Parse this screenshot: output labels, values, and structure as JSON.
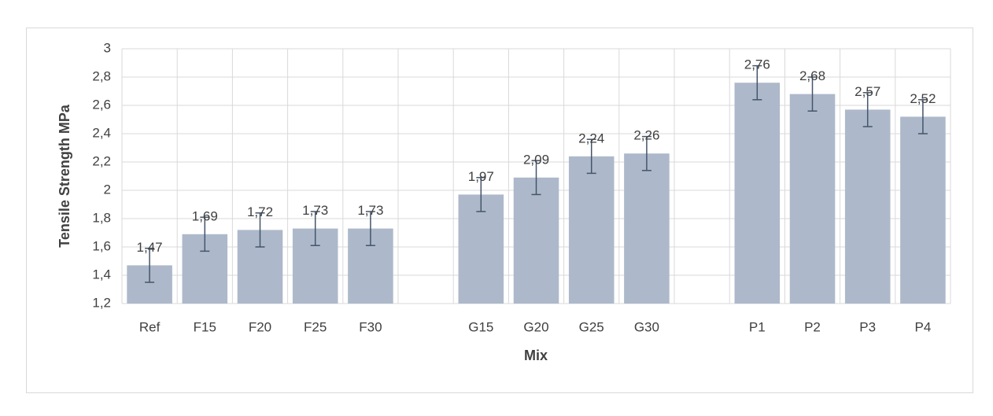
{
  "chart_data": {
    "type": "bar",
    "x_label": "Mix",
    "y_label": "Tensile Strength MPa",
    "categories": [
      "Ref",
      "F15",
      "F20",
      "F25",
      "F30",
      null,
      "G15",
      "G20",
      "G25",
      "G30",
      null,
      "P1",
      "P2",
      "P3",
      "P4"
    ],
    "values": [
      1.47,
      1.69,
      1.72,
      1.73,
      1.73,
      null,
      1.97,
      2.09,
      2.24,
      2.26,
      null,
      2.76,
      2.68,
      2.57,
      2.52
    ],
    "value_labels": [
      "1,47",
      "1,69",
      "1,72",
      "1,73",
      "1,73",
      null,
      "1,97",
      "2,09",
      "2,24",
      "2,26",
      null,
      "2,76",
      "2,68",
      "2,57",
      "2,52"
    ],
    "errors": [
      0.12,
      0.12,
      0.12,
      0.12,
      0.12,
      null,
      0.12,
      0.12,
      0.12,
      0.12,
      null,
      0.12,
      0.12,
      0.12,
      0.12
    ],
    "color": "#adb9ca",
    "error_color": "#44546a",
    "ylim": [
      1.2,
      3
    ],
    "yticks": [
      {
        "value": 1.2,
        "label": "1,2"
      },
      {
        "value": 1.4,
        "label": "1,4"
      },
      {
        "value": 1.6,
        "label": "1,6"
      },
      {
        "value": 1.8,
        "label": "1,8"
      },
      2,
      {
        "value": 2.2,
        "label": "2,2"
      },
      {
        "value": 2.4,
        "label": "2,4"
      },
      {
        "value": 2.6,
        "label": "2,6"
      },
      {
        "value": 2.8,
        "label": "2,8"
      },
      3
    ],
    "grid": true
  }
}
